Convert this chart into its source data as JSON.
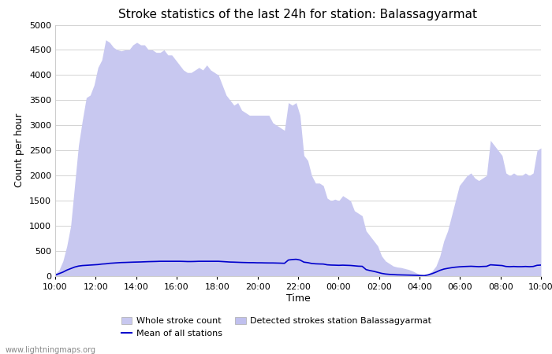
{
  "title": "Stroke statistics of the last 24h for station: Balassagyarmat",
  "xlabel": "Time",
  "ylabel": "Count per hour",
  "watermark": "www.lightningmaps.org",
  "x_labels": [
    "10:00",
    "12:00",
    "14:00",
    "16:00",
    "18:00",
    "20:00",
    "22:00",
    "00:00",
    "02:00",
    "04:00",
    "06:00",
    "08:00",
    "10:00"
  ],
  "ylim": [
    0,
    5000
  ],
  "yticks": [
    0,
    500,
    1000,
    1500,
    2000,
    2500,
    3000,
    3500,
    4000,
    4500,
    5000
  ],
  "whole_stroke_color": "#c8c8f0",
  "detected_stroke_color": "#c0c0ee",
  "mean_line_color": "#0000cc",
  "background_color": "#ffffff",
  "legend_entries": [
    "Whole stroke count",
    "Mean of all stations",
    "Detected strokes station Balassagyarmat"
  ],
  "whole_stroke_data": [
    50,
    120,
    300,
    600,
    1000,
    1800,
    2600,
    3100,
    3550,
    3600,
    3800,
    4150,
    4300,
    4700,
    4650,
    4550,
    4500,
    4480,
    4500,
    4500,
    4600,
    4650,
    4600,
    4600,
    4500,
    4500,
    4450,
    4450,
    4500,
    4400,
    4400,
    4300,
    4200,
    4100,
    4050,
    4050,
    4100,
    4150,
    4100,
    4200,
    4100,
    4050,
    4000,
    3800,
    3600,
    3500,
    3400,
    3450,
    3300,
    3250,
    3200,
    3200,
    3200,
    3200,
    3200,
    3200,
    3050,
    3000,
    2950,
    2900,
    3450,
    3400,
    3450,
    3200,
    2400,
    2300,
    2000,
    1850,
    1850,
    1800,
    1550,
    1500,
    1530,
    1500,
    1600,
    1550,
    1500,
    1300,
    1250,
    1200,
    900,
    800,
    700,
    600,
    400,
    300,
    250,
    200,
    180,
    170,
    150,
    130,
    100,
    60,
    30,
    20,
    50,
    100,
    200,
    400,
    700,
    900,
    1200,
    1500,
    1800,
    1900,
    2000,
    2050,
    1950,
    1900,
    1950,
    2000,
    2700,
    2600,
    2500,
    2400,
    2050,
    2000,
    2050,
    2000,
    2000,
    2050,
    2000,
    2050,
    2500,
    2550
  ],
  "mean_line_data": [
    20,
    50,
    80,
    120,
    150,
    180,
    200,
    210,
    215,
    220,
    225,
    230,
    240,
    245,
    255,
    260,
    265,
    270,
    272,
    275,
    278,
    280,
    282,
    285,
    288,
    290,
    292,
    295,
    295,
    295,
    295,
    295,
    295,
    293,
    290,
    290,
    292,
    295,
    295,
    295,
    295,
    295,
    295,
    290,
    285,
    280,
    278,
    275,
    272,
    270,
    268,
    268,
    265,
    265,
    263,
    262,
    262,
    260,
    258,
    255,
    320,
    330,
    335,
    320,
    278,
    268,
    252,
    245,
    242,
    240,
    225,
    220,
    218,
    215,
    218,
    215,
    212,
    205,
    198,
    195,
    130,
    110,
    95,
    75,
    55,
    42,
    35,
    30,
    26,
    24,
    22,
    20,
    18,
    15,
    12,
    10,
    25,
    50,
    80,
    115,
    140,
    155,
    168,
    178,
    185,
    190,
    193,
    196,
    192,
    188,
    192,
    195,
    225,
    220,
    215,
    210,
    192,
    188,
    192,
    188,
    188,
    192,
    188,
    192,
    215,
    220
  ]
}
